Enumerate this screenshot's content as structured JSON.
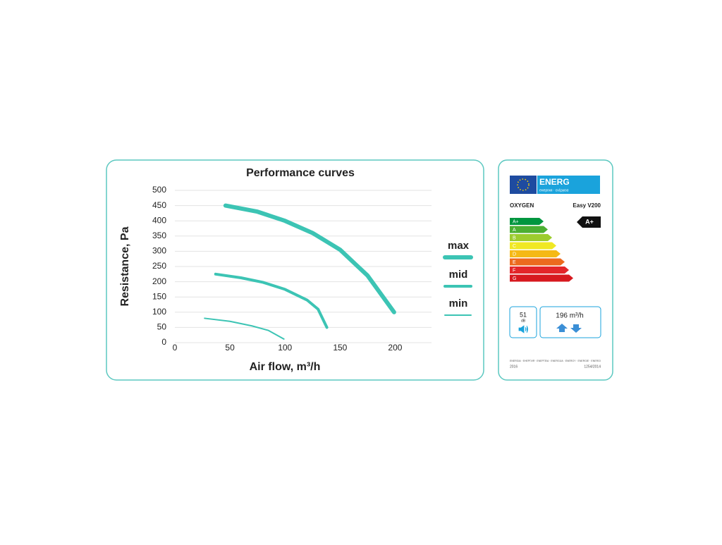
{
  "chart_data": {
    "type": "line",
    "title": "Performance curves",
    "x_label": "Air flow, m³/h",
    "y_label": "Resistance, Pa",
    "xlim": [
      0,
      233
    ],
    "xticks": [
      0,
      50,
      100,
      150,
      200
    ],
    "ylim": [
      0,
      500
    ],
    "yticks": [
      0,
      50,
      100,
      150,
      200,
      250,
      300,
      350,
      400,
      450,
      500
    ],
    "grid": true,
    "legend": "right",
    "series": [
      {
        "name": "max",
        "color": "#3cc4b4",
        "x": [
          46,
          75,
          100,
          125,
          150,
          175,
          199
        ],
        "values": [
          450,
          430,
          400,
          360,
          305,
          220,
          100
        ]
      },
      {
        "name": "mid",
        "color": "#3cc4b4",
        "x": [
          37,
          60,
          80,
          100,
          120,
          130,
          138
        ],
        "values": [
          225,
          213,
          198,
          175,
          140,
          110,
          50
        ]
      },
      {
        "name": "min",
        "color": "#3cc4b4",
        "x": [
          27,
          50,
          70,
          85,
          99
        ],
        "values": [
          80,
          70,
          55,
          40,
          12
        ]
      }
    ]
  },
  "energy_label": {
    "logo": "ENERG",
    "logo_sub": "енергия · ενέργεια",
    "brand": "OXYGEN",
    "model": "Easy V200",
    "rating": "A+",
    "classes": [
      {
        "label": "A+",
        "color": "#00963f"
      },
      {
        "label": "A",
        "color": "#4caf32"
      },
      {
        "label": "B",
        "color": "#9ccc2e"
      },
      {
        "label": "C",
        "color": "#f0e824"
      },
      {
        "label": "D",
        "color": "#f5b915"
      },
      {
        "label": "E",
        "color": "#ec6a1e"
      },
      {
        "label": "F",
        "color": "#e3262a"
      },
      {
        "label": "G",
        "color": "#d7191f"
      }
    ],
    "noise": "51",
    "noise_unit": "dB",
    "airflow": "196 m³/h",
    "footer_words": "ENERGIA · ЕНЕРГИЯ · ΕΝΕΡΓΕΙΑ · ENERGIJA · ENERGY · ENERGIE · ENERGI",
    "year": "2016",
    "regulation": "1254/2014"
  }
}
